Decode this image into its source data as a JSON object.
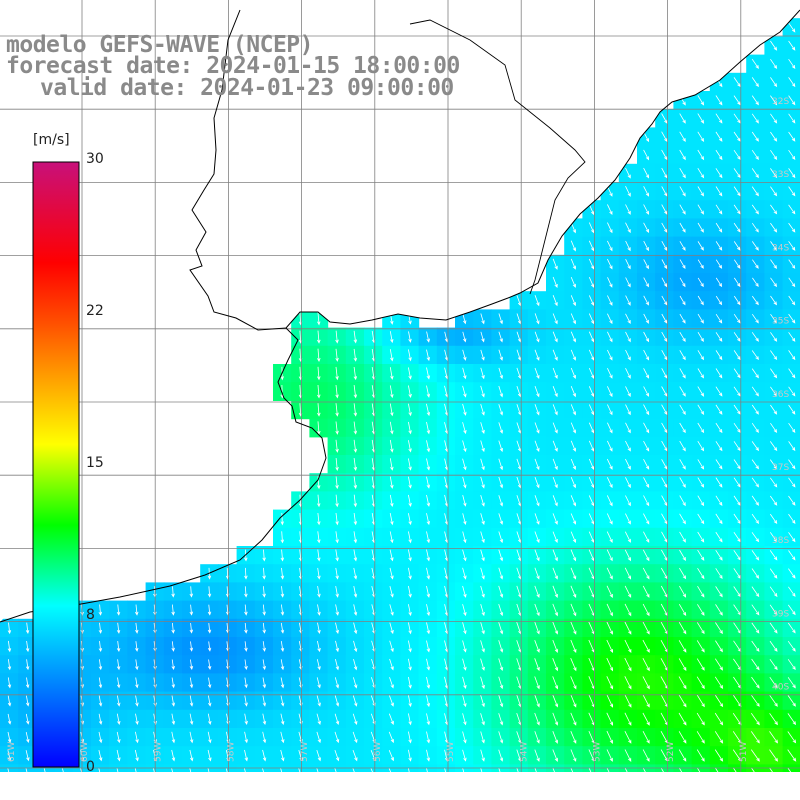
{
  "title": {
    "line1": "modelo GEFS-WAVE (NCEP)",
    "line2": "forecast date: 2024-01-15 18:00:00",
    "line3": "valid date: 2024-01-23 09:00:00"
  },
  "colorbar": {
    "unit": "[m/s]",
    "ticks": [
      "30",
      "22",
      "15",
      "8",
      "0"
    ],
    "stops": [
      {
        "value": 0,
        "color": "#0000ff"
      },
      {
        "value": 8,
        "color": "#00ffff"
      },
      {
        "value": 12,
        "color": "#00ff00"
      },
      {
        "value": 16,
        "color": "#ffff00"
      },
      {
        "value": 22,
        "color": "#ff5000"
      },
      {
        "value": 25,
        "color": "#ff0000"
      },
      {
        "value": 30,
        "color": "#c8107a"
      }
    ]
  },
  "lat_labels": [
    "32S",
    "33S",
    "34S",
    "35S",
    "36S",
    "37S",
    "38S",
    "39S",
    "40S"
  ],
  "lon_labels": [
    "61W",
    "60W",
    "59W",
    "58W",
    "57W",
    "56W",
    "55W",
    "54W",
    "53W",
    "52W",
    "51W"
  ],
  "colors": {
    "land": "#ffffff",
    "grid": "#808080",
    "coast": "#000000",
    "arrow": "#ffffff"
  },
  "wind_field": {
    "direction": "from north-east, pointing south-west to south",
    "range_ms": [
      4,
      14
    ]
  }
}
